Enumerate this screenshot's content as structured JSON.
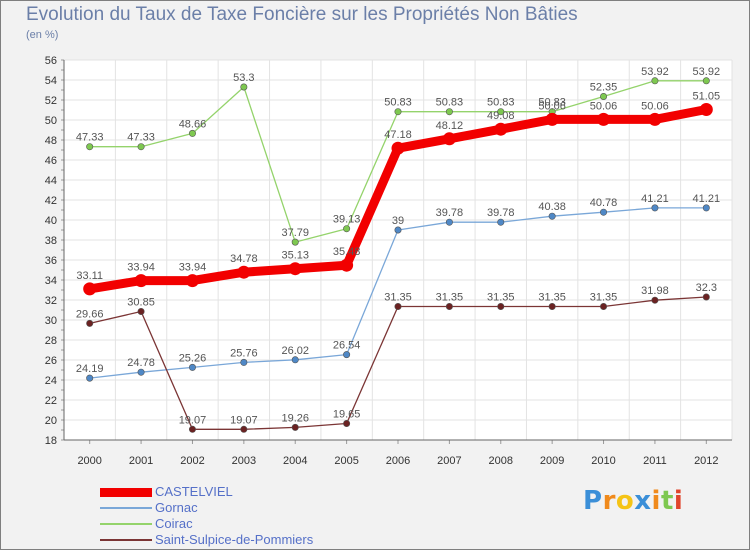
{
  "chart_data": {
    "type": "line",
    "title": "Evolution du Taux de Taxe Foncière sur les Propriétés Non Bâties",
    "subtitle": "(en %)",
    "xlabel": "",
    "ylabel": "",
    "ylim": [
      18,
      56
    ],
    "yticks": [
      18,
      20,
      22,
      24,
      26,
      28,
      30,
      32,
      34,
      36,
      38,
      40,
      42,
      44,
      46,
      48,
      50,
      52,
      54,
      56
    ],
    "x": [
      "2000",
      "2001",
      "2002",
      "2003",
      "2004",
      "2005",
      "2006",
      "2007",
      "2008",
      "2009",
      "2010",
      "2011",
      "2012"
    ],
    "grid": true,
    "legend_position": "bottom-left",
    "series": [
      {
        "name": "Coirac",
        "color": "#94d36b",
        "marker": "#7ec850",
        "values": [
          47.33,
          47.33,
          48.66,
          53.3,
          37.79,
          39.13,
          50.83,
          50.83,
          50.83,
          50.83,
          52.35,
          53.92,
          53.92
        ],
        "labels": [
          "47.33",
          "47.33",
          "48.66",
          "53.3",
          "37.79",
          "39.13",
          "50.83",
          "50.83",
          "50.83",
          "50.83",
          "52.35",
          "53.92",
          "53.92"
        ]
      },
      {
        "name": "Gornac",
        "color": "#7aa7d8",
        "marker": "#4f88c6",
        "values": [
          24.19,
          24.78,
          25.26,
          25.76,
          26.02,
          26.54,
          39,
          39.78,
          39.78,
          40.38,
          40.78,
          41.21,
          41.21
        ],
        "labels": [
          "24.19",
          "24.78",
          "25.26",
          "25.76",
          "26.02",
          "26.54",
          "39",
          "39.78",
          "39.78",
          "40.38",
          "40.78",
          "41.21",
          "41.21"
        ]
      },
      {
        "name": "Saint-Sulpice-de-Pommiers",
        "color": "#7b3535",
        "marker": "#6b2222",
        "values": [
          29.66,
          30.85,
          19.07,
          19.07,
          19.26,
          19.65,
          31.35,
          31.35,
          31.35,
          31.35,
          31.35,
          31.98,
          32.3
        ],
        "labels": [
          "29.66",
          "30.85",
          "19.07",
          "19.07",
          "19.26",
          "19.65",
          "31.35",
          "31.35",
          "31.35",
          "31.35",
          "31.35",
          "31.98",
          "32.3"
        ]
      },
      {
        "name": "CASTELVIEL",
        "color": "#f20000",
        "marker": "#f20000",
        "values": [
          33.11,
          33.94,
          33.94,
          34.78,
          35.13,
          35.48,
          47.18,
          48.12,
          49.08,
          50.06,
          50.06,
          50.06,
          51.05
        ],
        "labels": [
          "33.11",
          "33.94",
          "33.94",
          "34.78",
          "35.13",
          "35.48",
          "47.18",
          "48.12",
          "49.08",
          "50.06",
          "50.06",
          "50.06",
          "51.05"
        ]
      }
    ],
    "legend": [
      {
        "name": "CASTELVIEL",
        "color": "#f20000"
      },
      {
        "name": "Gornac",
        "color": "#7aa7d8"
      },
      {
        "name": "Coirac",
        "color": "#94d36b"
      },
      {
        "name": "Saint-Sulpice-de-Pommiers",
        "color": "#7b3535"
      }
    ]
  },
  "brand": {
    "letters": [
      "P",
      "r",
      "o",
      "x",
      "i",
      "t",
      "i"
    ],
    "colors": [
      "#3b8fd8",
      "#f08a1c",
      "#f5c416",
      "#3b8fd8",
      "#f08a1c",
      "#7ec850",
      "#e0452c"
    ]
  }
}
